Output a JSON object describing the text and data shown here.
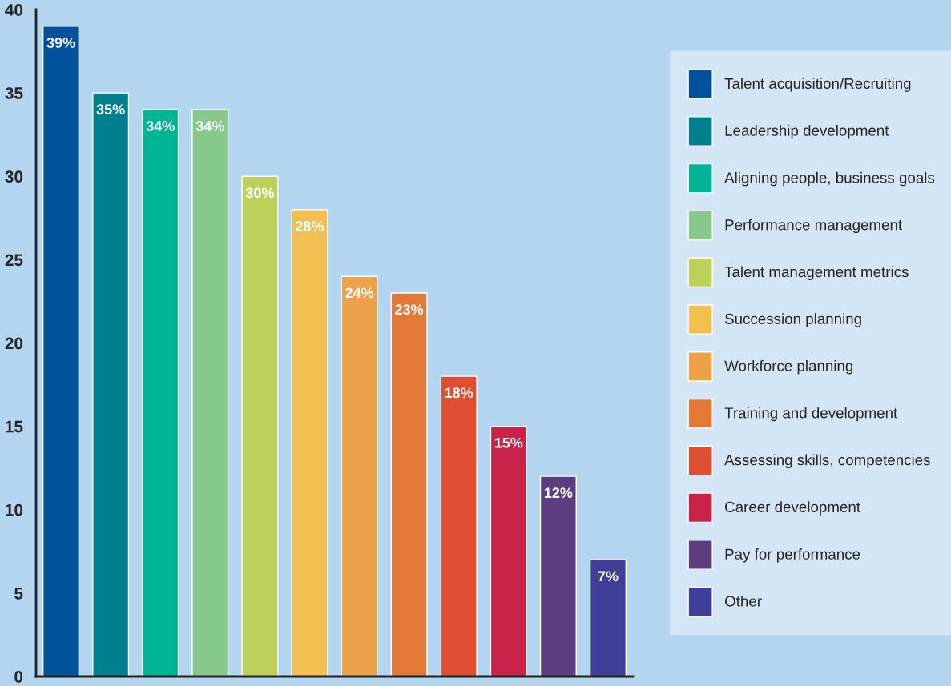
{
  "chart_data": {
    "type": "bar",
    "categories": [
      null,
      null,
      null,
      null,
      null,
      null,
      null,
      null,
      null,
      null,
      null,
      null
    ],
    "series": [
      {
        "name": "Talent acquisition/Recruiting",
        "color": "#00529b",
        "values": [
          39,
          null,
          null,
          null,
          null,
          null,
          null,
          null,
          null,
          null,
          null,
          null
        ],
        "value_labels": [
          "39%",
          null,
          null,
          null,
          null,
          null,
          null,
          null,
          null,
          null,
          null,
          null
        ]
      },
      {
        "name": "Leadership development",
        "color": "#00808f",
        "values": [
          null,
          35,
          null,
          null,
          null,
          null,
          null,
          null,
          null,
          null,
          null,
          null
        ],
        "value_labels": [
          null,
          "35%",
          null,
          null,
          null,
          null,
          null,
          null,
          null,
          null,
          null,
          null
        ]
      },
      {
        "name": "Aligning people, business goals",
        "color": "#00b494",
        "values": [
          null,
          null,
          34,
          null,
          null,
          null,
          null,
          null,
          null,
          null,
          null,
          null
        ],
        "value_labels": [
          null,
          null,
          "34%",
          null,
          null,
          null,
          null,
          null,
          null,
          null,
          null,
          null
        ]
      },
      {
        "name": "Performance management",
        "color": "#86c98a",
        "values": [
          null,
          null,
          null,
          34,
          null,
          null,
          null,
          null,
          null,
          null,
          null,
          null
        ],
        "value_labels": [
          null,
          null,
          null,
          "34%",
          null,
          null,
          null,
          null,
          null,
          null,
          null,
          null
        ]
      },
      {
        "name": "Talent management metrics",
        "color": "#bdd05a",
        "values": [
          null,
          null,
          null,
          null,
          30,
          null,
          null,
          null,
          null,
          null,
          null,
          null
        ],
        "value_labels": [
          null,
          null,
          null,
          null,
          "30%",
          null,
          null,
          null,
          null,
          null,
          null,
          null
        ]
      },
      {
        "name": "Succession planning",
        "color": "#f2bf50",
        "values": [
          null,
          null,
          null,
          null,
          null,
          28,
          null,
          null,
          null,
          null,
          null,
          null
        ],
        "value_labels": [
          null,
          null,
          null,
          null,
          null,
          "28%",
          null,
          null,
          null,
          null,
          null,
          null
        ]
      },
      {
        "name": "Workforce planning",
        "color": "#eda24a",
        "values": [
          null,
          null,
          null,
          null,
          null,
          null,
          24,
          null,
          null,
          null,
          null,
          null
        ],
        "value_labels": [
          null,
          null,
          null,
          null,
          null,
          null,
          "24%",
          null,
          null,
          null,
          null,
          null
        ]
      },
      {
        "name": "Training and development",
        "color": "#e47836",
        "values": [
          null,
          null,
          null,
          null,
          null,
          null,
          null,
          23,
          null,
          null,
          null,
          null
        ],
        "value_labels": [
          null,
          null,
          null,
          null,
          null,
          null,
          null,
          "23%",
          null,
          null,
          null,
          null
        ]
      },
      {
        "name": "Assessing skills, competencies",
        "color": "#e04e31",
        "values": [
          null,
          null,
          null,
          null,
          null,
          null,
          null,
          null,
          18,
          null,
          null,
          null
        ],
        "value_labels": [
          null,
          null,
          null,
          null,
          null,
          null,
          null,
          null,
          "18%",
          null,
          null,
          null
        ]
      },
      {
        "name": "Career development",
        "color": "#c9234a",
        "values": [
          null,
          null,
          null,
          null,
          null,
          null,
          null,
          null,
          null,
          15,
          null,
          null
        ],
        "value_labels": [
          null,
          null,
          null,
          null,
          null,
          null,
          null,
          null,
          null,
          "15%",
          null,
          null
        ]
      },
      {
        "name": "Pay for performance",
        "color": "#5b3d80",
        "values": [
          null,
          null,
          null,
          null,
          null,
          null,
          null,
          null,
          null,
          null,
          12,
          null
        ],
        "value_labels": [
          null,
          null,
          null,
          null,
          null,
          null,
          null,
          null,
          null,
          null,
          "12%",
          null
        ]
      },
      {
        "name": "Other",
        "color": "#3f3f99",
        "values": [
          null,
          null,
          null,
          null,
          null,
          null,
          null,
          null,
          null,
          null,
          null,
          7
        ],
        "value_labels": [
          null,
          null,
          null,
          null,
          null,
          null,
          null,
          null,
          null,
          null,
          null,
          "7%"
        ]
      }
    ],
    "ylim": [
      0,
      40
    ],
    "yticks": [
      0,
      5,
      10,
      15,
      20,
      25,
      30,
      35,
      40
    ],
    "tick_labels": "y",
    "legend": "right",
    "grid": false
  }
}
